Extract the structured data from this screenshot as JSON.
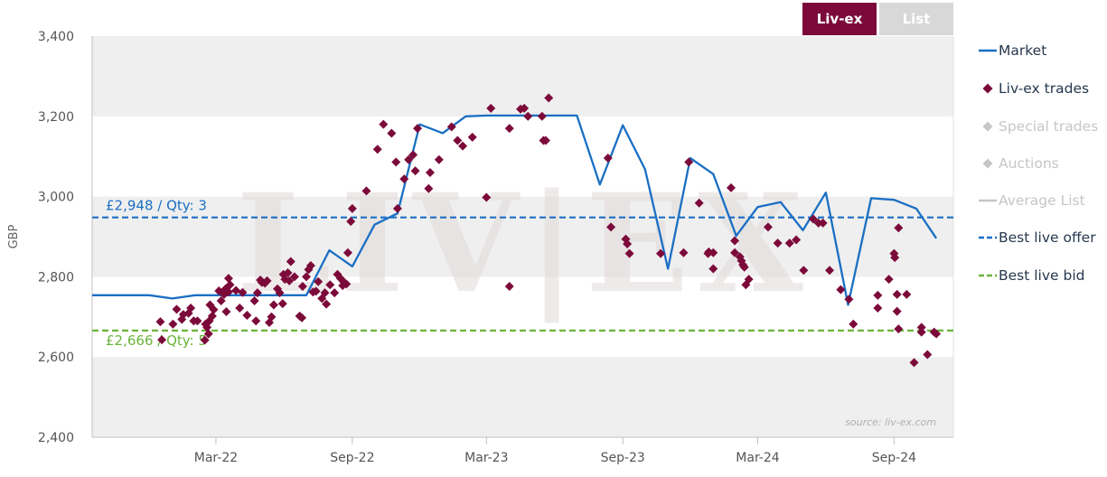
{
  "toggle": {
    "livex_label": "Liv-ex",
    "list_label": "List"
  },
  "legend": {
    "items": [
      {
        "label": "Market",
        "symbol": "line",
        "color": "#1a6fc4",
        "muted": false
      },
      {
        "label": "Liv-ex trades",
        "symbol": "diamond",
        "color": "#7b0a3a",
        "muted": false
      },
      {
        "label": "Special trades",
        "symbol": "diamond",
        "color": "#c6c6c6",
        "muted": true
      },
      {
        "label": "Auctions",
        "symbol": "diamond",
        "color": "#c6c6c6",
        "muted": true
      },
      {
        "label": "Average List",
        "symbol": "line",
        "color": "#c6c6c6",
        "muted": true
      },
      {
        "label": "Best live offer",
        "symbol": "dash",
        "color": "#1a6fc4",
        "muted": false
      },
      {
        "label": "Best live bid",
        "symbol": "dash",
        "color": "#6ab53a",
        "muted": false
      }
    ]
  },
  "watermark_text": "LIV|EX",
  "source_text": "source: liv-ex.com",
  "chart_data": {
    "type": "line",
    "ylabel": "GBP",
    "xlabel": "",
    "ylim": [
      2400,
      3400
    ],
    "yticks": [
      2400,
      2600,
      2800,
      3000,
      3200,
      3400
    ],
    "ytick_labels": [
      "2,400",
      "2,600",
      "2,800",
      "3,000",
      "3,200",
      "3,400"
    ],
    "xlim": [
      "2021-09-15",
      "2024-11-20"
    ],
    "xticks": [
      "2022-03-01",
      "2022-09-01",
      "2023-03-01",
      "2023-09-01",
      "2024-03-01",
      "2024-09-01"
    ],
    "xtick_labels": [
      "Mar-22",
      "Sep-22",
      "Mar-23",
      "Sep-23",
      "Mar-24",
      "Sep-24"
    ],
    "bands": [
      [
        3200,
        3400
      ],
      [
        2800,
        3000
      ],
      [
        2400,
        2600
      ]
    ],
    "grid": true,
    "legend_position": "right",
    "colors": {
      "market": "#1a6fc4",
      "trades": "#7b0a3a",
      "offer": "#1a6fc4",
      "bid": "#6ab53a",
      "band": "#efefef"
    },
    "best_live_offer": {
      "value": 2948,
      "label": "£2,948 / Qty: 3"
    },
    "best_live_bid": {
      "value": 2666,
      "label": "£2,666 / Qty: 5"
    },
    "market": [
      [
        "2021-09-15",
        2754
      ],
      [
        "2021-11-01",
        2754
      ],
      [
        "2021-12-01",
        2754
      ],
      [
        "2022-01-01",
        2746
      ],
      [
        "2022-02-01",
        2754
      ],
      [
        "2022-03-01",
        2754
      ],
      [
        "2022-04-01",
        2754
      ],
      [
        "2022-05-01",
        2754
      ],
      [
        "2022-06-01",
        2754
      ],
      [
        "2022-07-01",
        2754
      ],
      [
        "2022-08-01",
        2866
      ],
      [
        "2022-09-01",
        2826
      ],
      [
        "2022-10-01",
        2930
      ],
      [
        "2022-11-01",
        2958
      ],
      [
        "2022-12-01",
        3180
      ],
      [
        "2023-01-01",
        3158
      ],
      [
        "2023-02-01",
        3200
      ],
      [
        "2023-03-01",
        3202
      ],
      [
        "2023-04-01",
        3202
      ],
      [
        "2023-05-01",
        3202
      ],
      [
        "2023-06-01",
        3202
      ],
      [
        "2023-07-01",
        3202
      ],
      [
        "2023-08-01",
        3030
      ],
      [
        "2023-09-01",
        3178
      ],
      [
        "2023-10-01",
        3068
      ],
      [
        "2023-11-01",
        2820
      ],
      [
        "2023-12-01",
        3096
      ],
      [
        "2024-01-01",
        3056
      ],
      [
        "2024-02-01",
        2902
      ],
      [
        "2024-03-01",
        2974
      ],
      [
        "2024-04-01",
        2986
      ],
      [
        "2024-05-01",
        2916
      ],
      [
        "2024-06-01",
        3010
      ],
      [
        "2024-07-01",
        2730
      ],
      [
        "2024-08-01",
        2996
      ],
      [
        "2024-09-01",
        2992
      ],
      [
        "2024-10-01",
        2970
      ],
      [
        "2024-10-28",
        2896
      ]
    ],
    "trades": [
      [
        "2021-12-16",
        2688
      ],
      [
        "2021-12-18",
        2643
      ],
      [
        "2022-01-02",
        2682
      ],
      [
        "2022-01-07",
        2719
      ],
      [
        "2022-01-14",
        2694
      ],
      [
        "2022-01-16",
        2706
      ],
      [
        "2022-01-23",
        2709
      ],
      [
        "2022-01-26",
        2722
      ],
      [
        "2022-01-30",
        2690
      ],
      [
        "2022-02-04",
        2690
      ],
      [
        "2022-02-14",
        2642
      ],
      [
        "2022-02-15",
        2682
      ],
      [
        "2022-02-17",
        2674
      ],
      [
        "2022-02-19",
        2658
      ],
      [
        "2022-02-20",
        2690
      ],
      [
        "2022-02-21",
        2730
      ],
      [
        "2022-02-24",
        2702
      ],
      [
        "2022-02-26",
        2718
      ],
      [
        "2022-03-05",
        2765
      ],
      [
        "2022-03-08",
        2740
      ],
      [
        "2022-03-12",
        2756
      ],
      [
        "2022-03-14",
        2770
      ],
      [
        "2022-03-15",
        2713
      ],
      [
        "2022-03-18",
        2762
      ],
      [
        "2022-03-18",
        2796
      ],
      [
        "2022-03-20",
        2780
      ],
      [
        "2022-03-28",
        2766
      ],
      [
        "2022-04-02",
        2722
      ],
      [
        "2022-04-06",
        2761
      ],
      [
        "2022-04-12",
        2704
      ],
      [
        "2022-04-22",
        2740
      ],
      [
        "2022-04-24",
        2690
      ],
      [
        "2022-04-26",
        2760
      ],
      [
        "2022-04-30",
        2792
      ],
      [
        "2022-05-02",
        2786
      ],
      [
        "2022-05-06",
        2784
      ],
      [
        "2022-05-09",
        2790
      ],
      [
        "2022-05-12",
        2686
      ],
      [
        "2022-05-15",
        2700
      ],
      [
        "2022-05-18",
        2730
      ],
      [
        "2022-05-23",
        2770
      ],
      [
        "2022-05-26",
        2760
      ],
      [
        "2022-05-30",
        2733
      ],
      [
        "2022-05-31",
        2806
      ],
      [
        "2022-06-02",
        2794
      ],
      [
        "2022-06-06",
        2810
      ],
      [
        "2022-06-08",
        2790
      ],
      [
        "2022-06-10",
        2838
      ],
      [
        "2022-06-15",
        2800
      ],
      [
        "2022-06-22",
        2702
      ],
      [
        "2022-06-25",
        2698
      ],
      [
        "2022-06-26",
        2776
      ],
      [
        "2022-07-01",
        2800
      ],
      [
        "2022-07-04",
        2818
      ],
      [
        "2022-07-07",
        2828
      ],
      [
        "2022-07-10",
        2762
      ],
      [
        "2022-07-14",
        2764
      ],
      [
        "2022-07-17",
        2788
      ],
      [
        "2022-07-22",
        2746
      ],
      [
        "2022-07-26",
        2760
      ],
      [
        "2022-07-28",
        2732
      ],
      [
        "2022-08-02",
        2780
      ],
      [
        "2022-08-08",
        2760
      ],
      [
        "2022-08-12",
        2806
      ],
      [
        "2022-08-16",
        2796
      ],
      [
        "2022-08-19",
        2778
      ],
      [
        "2022-08-20",
        2788
      ],
      [
        "2022-08-24",
        2782
      ],
      [
        "2022-08-26",
        2860
      ],
      [
        "2022-08-30",
        2938
      ],
      [
        "2022-09-01",
        2970
      ],
      [
        "2022-09-20",
        3014
      ],
      [
        "2022-10-05",
        3118
      ],
      [
        "2022-10-13",
        3180
      ],
      [
        "2022-10-24",
        3158
      ],
      [
        "2022-10-30",
        3086
      ],
      [
        "2022-11-01",
        2970
      ],
      [
        "2022-11-10",
        3044
      ],
      [
        "2022-11-16",
        3092
      ],
      [
        "2022-11-22",
        3104
      ],
      [
        "2022-11-25",
        3064
      ],
      [
        "2022-11-28",
        3170
      ],
      [
        "2022-12-13",
        3020
      ],
      [
        "2022-12-15",
        3060
      ],
      [
        "2022-12-27",
        3092
      ],
      [
        "2023-01-13",
        3174
      ],
      [
        "2023-01-21",
        3140
      ],
      [
        "2023-01-28",
        3126
      ],
      [
        "2023-02-10",
        3148
      ],
      [
        "2023-03-01",
        2998
      ],
      [
        "2023-03-07",
        3220
      ],
      [
        "2023-04-01",
        3170
      ],
      [
        "2023-04-01",
        2776
      ],
      [
        "2023-04-16",
        3218
      ],
      [
        "2023-04-21",
        3220
      ],
      [
        "2023-04-26",
        3200
      ],
      [
        "2023-05-15",
        3200
      ],
      [
        "2023-05-17",
        3140
      ],
      [
        "2023-05-20",
        3140
      ],
      [
        "2023-05-24",
        3246
      ],
      [
        "2023-08-12",
        3096
      ],
      [
        "2023-08-16",
        2924
      ],
      [
        "2023-09-05",
        2894
      ],
      [
        "2023-09-07",
        2882
      ],
      [
        "2023-09-10",
        2858
      ],
      [
        "2023-10-22",
        2858
      ],
      [
        "2023-11-22",
        2860
      ],
      [
        "2023-11-29",
        3086
      ],
      [
        "2023-12-13",
        2984
      ],
      [
        "2023-12-25",
        2858
      ],
      [
        "2023-12-26",
        2862
      ],
      [
        "2024-01-01",
        2820
      ],
      [
        "2024-01-01",
        2860
      ],
      [
        "2024-01-25",
        3022
      ],
      [
        "2024-01-30",
        2890
      ],
      [
        "2024-01-30",
        2860
      ],
      [
        "2024-02-06",
        2850
      ],
      [
        "2024-02-08",
        2840
      ],
      [
        "2024-02-10",
        2830
      ],
      [
        "2024-02-12",
        2824
      ],
      [
        "2024-02-14",
        2780
      ],
      [
        "2024-02-18",
        2794
      ],
      [
        "2024-03-15",
        2924
      ],
      [
        "2024-03-28",
        2884
      ],
      [
        "2024-04-13",
        2884
      ],
      [
        "2024-04-22",
        2892
      ],
      [
        "2024-05-02",
        2816
      ],
      [
        "2024-05-15",
        2944
      ],
      [
        "2024-05-22",
        2934
      ],
      [
        "2024-05-28",
        2934
      ],
      [
        "2024-06-06",
        2816
      ],
      [
        "2024-06-21",
        2768
      ],
      [
        "2024-07-02",
        2744
      ],
      [
        "2024-07-08",
        2682
      ],
      [
        "2024-08-10",
        2754
      ],
      [
        "2024-08-10",
        2722
      ],
      [
        "2024-08-25",
        2794
      ],
      [
        "2024-09-01",
        2858
      ],
      [
        "2024-09-02",
        2848
      ],
      [
        "2024-09-05",
        2756
      ],
      [
        "2024-09-05",
        2714
      ],
      [
        "2024-09-07",
        2922
      ],
      [
        "2024-09-07",
        2670
      ],
      [
        "2024-09-18",
        2756
      ],
      [
        "2024-09-28",
        2586
      ],
      [
        "2024-10-08",
        2674
      ],
      [
        "2024-10-08",
        2662
      ],
      [
        "2024-10-16",
        2606
      ],
      [
        "2024-10-25",
        2662
      ],
      [
        "2024-10-28",
        2658
      ]
    ]
  }
}
